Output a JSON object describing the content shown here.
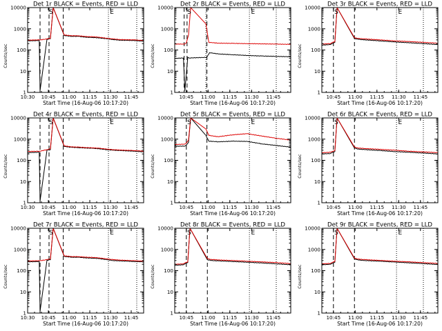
{
  "figure": {
    "colors": {
      "events": "#000000",
      "lld": "#dd0000",
      "axis": "#000000",
      "background": "#ffffff"
    },
    "x_tick_labels": [
      "10:30",
      "10:45",
      "11:00",
      "11:15",
      "11:30",
      "11:45"
    ],
    "y_tick_labels": [
      "1",
      "10",
      "100",
      "1000",
      "10000"
    ],
    "marker_labels": {
      "start": "S",
      "end": "E"
    }
  },
  "chart_data": [
    {
      "type": "line",
      "title": "Det 1r BLACK = Events, RED = LLD",
      "xlabel": "Start Time (16-Aug-06 10:17:20)",
      "ylabel": "Counts/sec",
      "xlim_min": [
        13,
        97
      ],
      "yscale": "log",
      "ylim": [
        1,
        10000
      ],
      "x_tick_minutes": [
        13,
        28,
        43,
        58,
        73,
        88
      ],
      "markers": {
        "dashed_min": [
          22,
          28.5,
          38.8
        ],
        "dotted_min": [
          71.5,
          92
        ],
        "S_min": 30,
        "E_min": 74
      },
      "series": [
        {
          "name": "Events",
          "min": [
            13,
            21.4,
            22,
            27,
            29.5,
            31.5,
            39.5,
            45,
            50,
            55,
            60,
            65,
            70,
            75,
            80,
            90,
            97
          ],
          "values": [
            270,
            280,
            1.2,
            320,
            340,
            10000,
            480,
            440,
            440,
            400,
            390,
            370,
            340,
            310,
            290,
            280,
            260
          ]
        },
        {
          "name": "LLD",
          "min": [
            13,
            21.4,
            22,
            27,
            29.5,
            31.5,
            39.5,
            45,
            50,
            55,
            60,
            65,
            70,
            75,
            80,
            90,
            97
          ],
          "values": [
            290,
            300,
            300,
            330,
            360,
            10000,
            510,
            470,
            470,
            430,
            420,
            400,
            360,
            330,
            310,
            300,
            280
          ]
        }
      ]
    },
    {
      "type": "line",
      "title": "Det 2r BLACK = Events, RED = LLD",
      "xlabel": "Start Time (16-Aug-06 10:17:20)",
      "ylabel": "Counts/sec",
      "xlim_min": [
        20,
        100
      ],
      "yscale": "log",
      "ylim": [
        1,
        10000
      ],
      "x_tick_minutes": [
        28,
        43,
        58,
        73,
        88
      ],
      "markers": {
        "dashed_min": [
          26.5,
          28.5,
          42.2
        ],
        "dotted_min": [
          41.5,
          71.5,
          90
        ],
        "S_min": 30,
        "E_min": 74
      },
      "series": [
        {
          "name": "Events",
          "min": [
            20,
            26,
            27,
            29,
            30,
            42,
            44,
            50,
            60,
            70,
            80,
            90,
            100
          ],
          "values": [
            40,
            42,
            1.2,
            45,
            42,
            45,
            75,
            65,
            60,
            55,
            52,
            50,
            48
          ]
        },
        {
          "name": "LLD",
          "min": [
            20,
            26,
            27,
            28,
            29.5,
            31,
            41.5,
            43.5,
            50,
            60,
            70,
            80,
            90,
            100
          ],
          "values": [
            190,
            190,
            190,
            220,
            500,
            10000,
            1700,
            230,
            210,
            205,
            200,
            195,
            190,
            185
          ]
        }
      ]
    },
    {
      "type": "line",
      "title": "Det 3r BLACK = Events, RED = LLD",
      "xlabel": "Start Time (16-Aug-06 10:17:20)",
      "ylabel": "Counts/sec",
      "xlim_min": [
        20,
        100
      ],
      "yscale": "log",
      "ylim": [
        1,
        10000
      ],
      "x_tick_minutes": [
        28,
        43,
        58,
        73,
        88
      ],
      "markers": {
        "dashed_min": [
          28,
          42.5
        ],
        "dotted_min": [
          71.5,
          90
        ],
        "S_min": 30,
        "E_min": 74
      },
      "series": [
        {
          "name": "Events",
          "min": [
            20,
            26,
            27,
            29,
            30.5,
            42.5,
            45,
            50,
            60,
            70,
            80,
            90,
            100
          ],
          "values": [
            170,
            180,
            200,
            230,
            10000,
            350,
            320,
            300,
            270,
            240,
            220,
            200,
            180
          ]
        },
        {
          "name": "LLD",
          "min": [
            20,
            26,
            27,
            29,
            30.5,
            42.5,
            45,
            50,
            60,
            70,
            80,
            90,
            100
          ],
          "values": [
            190,
            200,
            220,
            250,
            10000,
            380,
            350,
            330,
            300,
            270,
            250,
            230,
            210
          ]
        }
      ]
    },
    {
      "type": "line",
      "title": "Det 4r BLACK = Events, RED = LLD",
      "xlabel": "Start Time (16-Aug-06 10:17:20)",
      "ylabel": "Counts/sec",
      "xlim_min": [
        13,
        97
      ],
      "yscale": "log",
      "ylim": [
        1,
        10000
      ],
      "x_tick_minutes": [
        13,
        28,
        43,
        58,
        73,
        88
      ],
      "markers": {
        "dashed_min": [
          22,
          28.5,
          38.8
        ],
        "dotted_min": [
          71.5,
          92
        ],
        "S_min": 30,
        "E_min": 74
      },
      "series": [
        {
          "name": "Events",
          "min": [
            13,
            21.4,
            22,
            27,
            29.5,
            31.5,
            39.5,
            45,
            50,
            55,
            60,
            65,
            70,
            75,
            80,
            90,
            97
          ],
          "values": [
            230,
            240,
            1.2,
            300,
            320,
            10000,
            450,
            410,
            400,
            380,
            370,
            350,
            320,
            300,
            290,
            270,
            250
          ]
        },
        {
          "name": "LLD",
          "min": [
            13,
            21.4,
            22,
            27,
            29.5,
            31.5,
            39.5,
            45,
            50,
            55,
            60,
            65,
            70,
            75,
            80,
            90,
            97
          ],
          "values": [
            260,
            270,
            270,
            320,
            350,
            10000,
            480,
            430,
            420,
            400,
            390,
            370,
            340,
            320,
            305,
            290,
            270
          ]
        }
      ]
    },
    {
      "type": "line",
      "title": "Det 5r BLACK = Events, RED = LLD",
      "xlabel": "Start Time (16-Aug-06 10:17:20)",
      "ylabel": "Counts/sec",
      "xlim_min": [
        20,
        100
      ],
      "yscale": "log",
      "ylim": [
        1,
        10000
      ],
      "x_tick_minutes": [
        28,
        43,
        58,
        73,
        88
      ],
      "markers": {
        "dashed_min": [
          28,
          42.2
        ],
        "dotted_min": [
          71.5,
          90
        ],
        "S_min": 30,
        "E_min": 74
      },
      "series": [
        {
          "name": "Events",
          "min": [
            20,
            27,
            28,
            29.5,
            31,
            41.5,
            43.5,
            50,
            60,
            70,
            80,
            90,
            100
          ],
          "values": [
            460,
            470,
            520,
            700,
            10000,
            1500,
            800,
            750,
            800,
            780,
            600,
            500,
            420
          ]
        },
        {
          "name": "LLD",
          "min": [
            20,
            27,
            28,
            29.5,
            31,
            41.5,
            43.5,
            50,
            60,
            70,
            80,
            90,
            100
          ],
          "values": [
            560,
            580,
            650,
            900,
            10000,
            3000,
            1500,
            1300,
            1600,
            1800,
            1400,
            1100,
            900
          ]
        }
      ]
    },
    {
      "type": "line",
      "title": "Det 6r BLACK = Events, RED = LLD",
      "xlabel": "Start Time (16-Aug-06 10:17:20)",
      "ylabel": "Counts/sec",
      "xlim_min": [
        20,
        100
      ],
      "yscale": "log",
      "ylim": [
        1,
        10000
      ],
      "x_tick_minutes": [
        28,
        43,
        58,
        73,
        88
      ],
      "markers": {
        "dashed_min": [
          28,
          42.5
        ],
        "dotted_min": [
          71.5,
          90
        ],
        "S_min": 30,
        "E_min": 74
      },
      "series": [
        {
          "name": "Events",
          "min": [
            20,
            26,
            27,
            29,
            30.5,
            42.5,
            45,
            50,
            60,
            70,
            80,
            90,
            100
          ],
          "values": [
            200,
            210,
            230,
            260,
            10000,
            380,
            340,
            320,
            290,
            260,
            240,
            220,
            200
          ]
        },
        {
          "name": "LLD",
          "min": [
            20,
            26,
            27,
            29,
            30.5,
            42.5,
            45,
            50,
            60,
            70,
            80,
            90,
            100
          ],
          "values": [
            230,
            240,
            260,
            290,
            10000,
            420,
            380,
            360,
            330,
            300,
            270,
            250,
            230
          ]
        }
      ]
    },
    {
      "type": "line",
      "title": "Det 7r BLACK = Events, RED = LLD",
      "xlabel": "Start Time (16-Aug-06 10:17:20)",
      "ylabel": "Counts/sec",
      "xlim_min": [
        13,
        97
      ],
      "yscale": "log",
      "ylim": [
        1,
        10000
      ],
      "x_tick_minutes": [
        13,
        28,
        43,
        58,
        73,
        88
      ],
      "markers": {
        "dashed_min": [
          22,
          28.5,
          38.8
        ],
        "dotted_min": [
          71.5,
          92
        ],
        "S_min": 30,
        "E_min": 74
      },
      "series": [
        {
          "name": "Events",
          "min": [
            13,
            21.4,
            22,
            27,
            29.5,
            31.5,
            39.5,
            45,
            50,
            55,
            60,
            65,
            70,
            75,
            80,
            90,
            97
          ],
          "values": [
            260,
            270,
            1.2,
            310,
            330,
            10000,
            470,
            430,
            430,
            400,
            390,
            370,
            330,
            300,
            290,
            270,
            260
          ]
        },
        {
          "name": "LLD",
          "min": [
            13,
            21.4,
            22,
            27,
            29.5,
            31.5,
            39.5,
            45,
            50,
            55,
            60,
            65,
            70,
            75,
            80,
            90,
            97
          ],
          "values": [
            285,
            295,
            295,
            330,
            360,
            10000,
            500,
            460,
            460,
            430,
            420,
            400,
            360,
            330,
            315,
            295,
            280
          ]
        }
      ]
    },
    {
      "type": "line",
      "title": "Det 8r BLACK = Events, RED = LLD",
      "xlabel": "Start Time (16-Aug-06 10:17:20)",
      "ylabel": "Counts/sec",
      "xlim_min": [
        20,
        100
      ],
      "yscale": "log",
      "ylim": [
        1,
        10000
      ],
      "x_tick_minutes": [
        28,
        43,
        58,
        73,
        88
      ],
      "markers": {
        "dashed_min": [
          28,
          42.5
        ],
        "dotted_min": [
          71.5,
          90
        ],
        "S_min": 30,
        "E_min": 74
      },
      "series": [
        {
          "name": "Events",
          "min": [
            20,
            26,
            27,
            29,
            30.5,
            42.5,
            45,
            50,
            60,
            70,
            80,
            90,
            100
          ],
          "values": [
            180,
            190,
            210,
            240,
            10000,
            330,
            300,
            290,
            270,
            250,
            230,
            210,
            190
          ]
        },
        {
          "name": "LLD",
          "min": [
            20,
            26,
            27,
            29,
            30.5,
            42.5,
            45,
            50,
            60,
            70,
            80,
            90,
            100
          ],
          "values": [
            200,
            210,
            230,
            265,
            10000,
            370,
            340,
            320,
            300,
            280,
            260,
            240,
            215
          ]
        }
      ]
    },
    {
      "type": "line",
      "title": "Det 9r BLACK = Events, RED = LLD",
      "xlabel": "Start Time (16-Aug-06 10:17:20)",
      "ylabel": "Counts/sec",
      "xlim_min": [
        20,
        100
      ],
      "yscale": "log",
      "ylim": [
        1,
        10000
      ],
      "x_tick_minutes": [
        28,
        43,
        58,
        73,
        88
      ],
      "markers": {
        "dashed_min": [
          28,
          42.5
        ],
        "dotted_min": [
          71.5,
          90
        ],
        "S_min": 30,
        "E_min": 74
      },
      "series": [
        {
          "name": "Events",
          "min": [
            20,
            26,
            27,
            29,
            30.5,
            42.5,
            45,
            50,
            60,
            70,
            80,
            90,
            100
          ],
          "values": [
            190,
            200,
            220,
            250,
            10000,
            360,
            320,
            300,
            280,
            255,
            235,
            215,
            195
          ]
        },
        {
          "name": "LLD",
          "min": [
            20,
            26,
            27,
            29,
            30.5,
            42.5,
            45,
            50,
            60,
            70,
            80,
            90,
            100
          ],
          "values": [
            210,
            220,
            240,
            275,
            10000,
            390,
            350,
            330,
            305,
            280,
            260,
            240,
            220
          ]
        }
      ]
    }
  ]
}
